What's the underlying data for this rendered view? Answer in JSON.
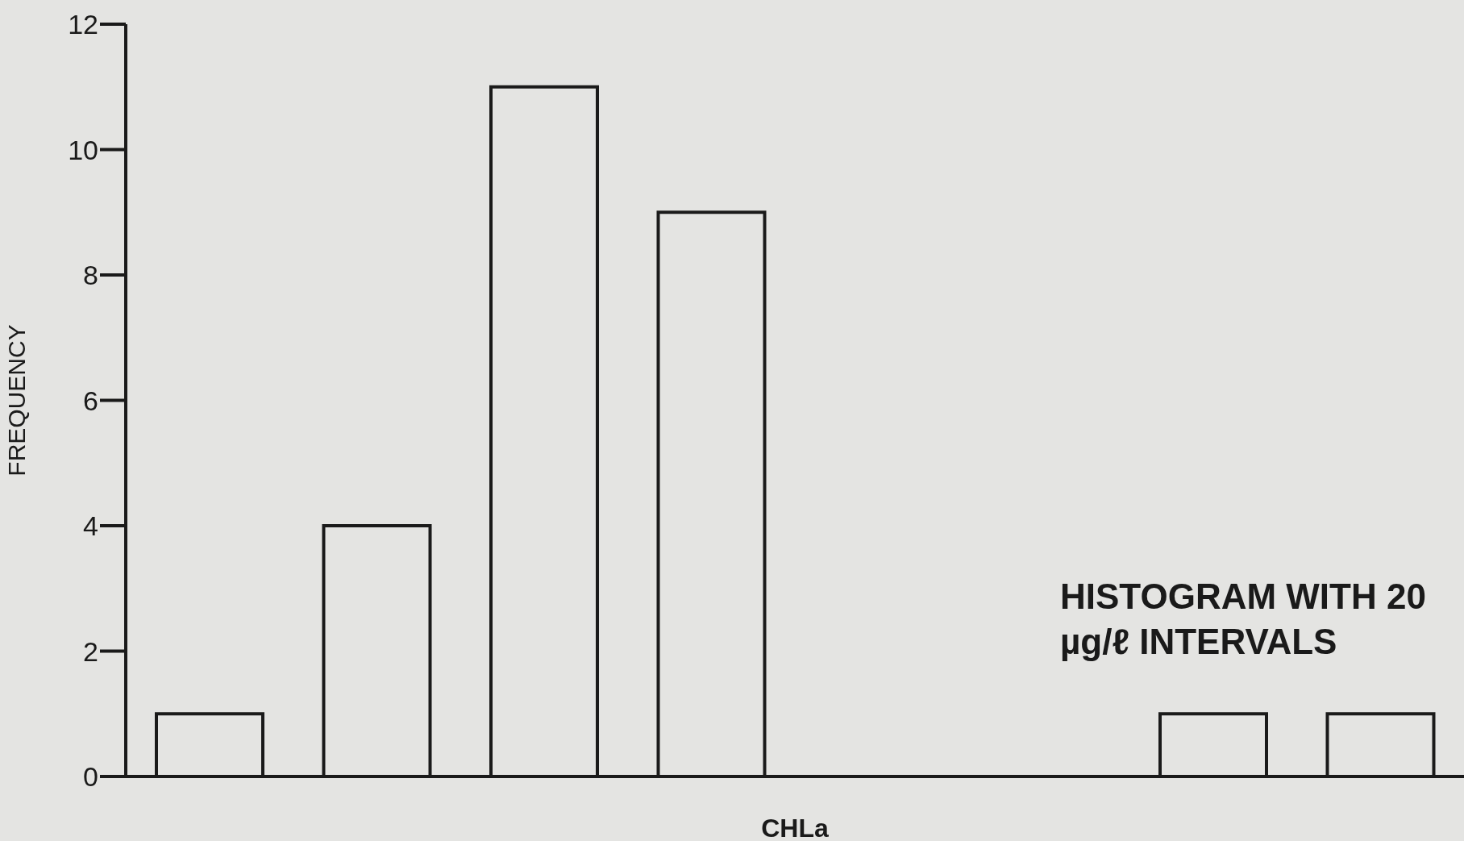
{
  "chart_data": {
    "type": "bar",
    "xlabel": "CHLa",
    "ylabel": "FREQUENCY",
    "categories": [
      null,
      null,
      null,
      null,
      null,
      null,
      null,
      null
    ],
    "values": [
      1,
      4,
      11,
      9,
      0,
      0,
      1,
      1
    ],
    "color": "#1a1a1a",
    "ylim": [
      0,
      12
    ],
    "yticks": [
      0,
      2,
      4,
      6,
      8,
      10,
      12
    ],
    "grid": false,
    "annotations": [
      "HISTOGRAM WITH 20 µg/ℓ INTERVALS"
    ]
  }
}
